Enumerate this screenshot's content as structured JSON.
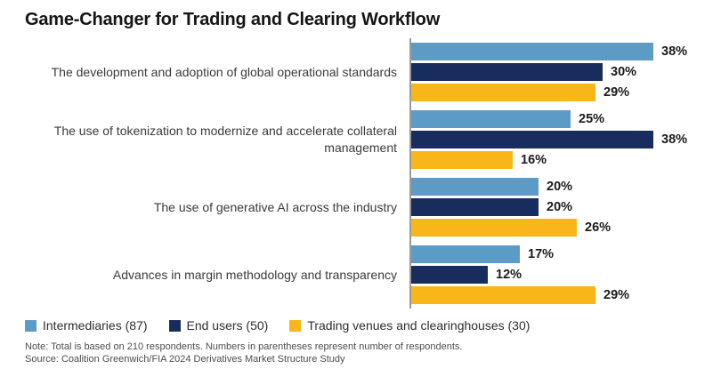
{
  "chart_data": {
    "type": "bar",
    "orientation": "horizontal",
    "title": "Game-Changer for Trading and Clearing Workflow",
    "categories": [
      "The development and adoption of global operational standards",
      "The use of tokenization to modernize and accelerate collateral management",
      "The use of generative AI across the industry",
      "Advances in margin methodology and transparency"
    ],
    "series": [
      {
        "name": "Intermediaries (87)",
        "color": "#5C9BC6",
        "values": [
          38,
          25,
          20,
          17
        ]
      },
      {
        "name": "End users (50)",
        "color": "#182C5D",
        "values": [
          30,
          38,
          20,
          12
        ]
      },
      {
        "name": "Trading venues and clearinghouses (30)",
        "color": "#F9B618",
        "values": [
          29,
          16,
          26,
          29
        ]
      }
    ],
    "value_suffix": "%",
    "xmax": 40,
    "xlabel": "",
    "ylabel": "",
    "grid": false,
    "legend_position": "bottom",
    "axis_line_color": "#9a9a9a"
  },
  "footer": {
    "note": "Note: Total is based on 210 respondents. Numbers in parentheses represent number of respondents.",
    "source": "Source: Coalition Greenwich/FIA 2024 Derivatives Market Structure Study"
  }
}
